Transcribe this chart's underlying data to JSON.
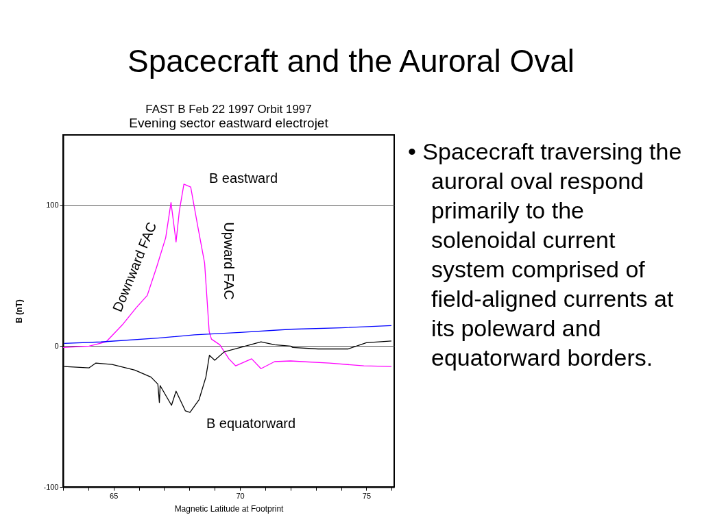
{
  "chart_data": {
    "type": "line",
    "title": "Spacecraft and the Auroral Oval",
    "subtitle": "FAST B Feb 22 1997 Orbit 1997",
    "xlabel": "Magnetic Latitude at Footprint",
    "ylabel": "B (nT)",
    "xlim": [
      63,
      76.1
    ],
    "ylim": [
      -100,
      150
    ],
    "xticks": [
      {
        "value": 63,
        "label": null
      },
      {
        "value": 64,
        "label": null
      },
      65,
      {
        "value": 66,
        "label": null
      },
      {
        "value": 67,
        "label": null
      },
      {
        "value": 68,
        "label": null
      },
      {
        "value": 69,
        "label": null
      },
      70,
      {
        "value": 71,
        "label": null
      },
      {
        "value": 72,
        "label": null
      },
      {
        "value": 73,
        "label": null
      },
      {
        "value": 74,
        "label": null
      },
      75,
      {
        "value": 76,
        "label": null
      }
    ],
    "yticks": [
      -100,
      0,
      100
    ],
    "grid": "y",
    "marker": "none",
    "line_style": "solid",
    "series": [
      {
        "color": "#ff00ff",
        "x": [
          63.0,
          64.03,
          64.7,
          65.34,
          65.88,
          66.33,
          66.7,
          67.06,
          67.27,
          67.47,
          67.6,
          67.78,
          68.05,
          68.33,
          68.6,
          68.78,
          68.87,
          69.2,
          69.56,
          69.83,
          70.46,
          70.83,
          71.37,
          72.0,
          72.46,
          73.54,
          74.9,
          75.99
        ],
        "values": [
          -1,
          0,
          3,
          15,
          27,
          36,
          56,
          77,
          102,
          74,
          96,
          115,
          113,
          85,
          59,
          10.5,
          5,
          1,
          -9,
          -14,
          -9,
          -16,
          -11,
          -10.5,
          -11,
          -12,
          -14,
          -14.5
        ]
      },
      {
        "color": "#000000",
        "x": [
          63.04,
          64.03,
          64.3,
          64.94,
          65.84,
          66.48,
          66.75,
          66.81,
          66.84,
          67.29,
          67.47,
          67.84,
          68.02,
          68.38,
          68.65,
          68.79,
          69.0,
          69.38,
          70.01,
          70.83,
          71.37,
          72.0,
          72.09,
          73.09,
          74.27,
          75.0,
          75.99
        ],
        "values": [
          -14.5,
          -15.4,
          -12,
          -13,
          -17,
          -22,
          -27,
          -40,
          -28,
          -42,
          -32,
          -46,
          -47,
          -38,
          -22,
          -6.5,
          -10,
          -4,
          -1,
          3,
          1,
          0,
          -1,
          -2,
          -2,
          2.4,
          3.7
        ]
      },
      {
        "color": "#0000ff",
        "x": [
          63.04,
          64.5,
          66.75,
          68.2,
          70.0,
          72.0,
          74.0,
          75.99
        ],
        "values": [
          2,
          3,
          5.7,
          8,
          9.7,
          12,
          13,
          14.6
        ]
      }
    ],
    "annotations": [
      "Evening sector eastward electrojet",
      "B eastward",
      "Downward FAC",
      "Upward FAC",
      "B equatorward",
      "• Spacecraft traversing the auroral oval respond primarily to the solenoidal current system comprised of field-aligned currents at its poleward and equatorward borders."
    ]
  }
}
